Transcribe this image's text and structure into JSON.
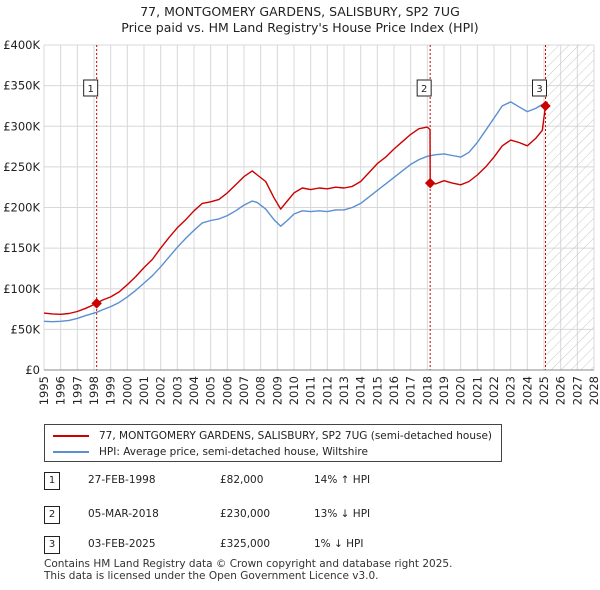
{
  "title_line1": "77, MONTGOMERY GARDENS, SALISBURY, SP2 7UG",
  "title_line2": "Price paid vs. HM Land Registry's House Price Index (HPI)",
  "legend": {
    "property_label": "77, MONTGOMERY GARDENS, SALISBURY, SP2 7UG (semi-detached house)",
    "hpi_label": "HPI: Average price, semi-detached house, Wiltshire"
  },
  "sales": [
    {
      "num": "1",
      "date": "27-FEB-1998",
      "price": "£82,000",
      "hpi": "14% ↑ HPI"
    },
    {
      "num": "2",
      "date": "05-MAR-2018",
      "price": "£230,000",
      "hpi": "13% ↓ HPI"
    },
    {
      "num": "3",
      "date": "03-FEB-2025",
      "price": "£325,000",
      "hpi": "1% ↓ HPI"
    }
  ],
  "footer": {
    "line1": "Contains HM Land Registry data © Crown copyright and database right 2025.",
    "line2": "This data is licensed under the Open Government Licence v3.0."
  },
  "colors": {
    "property": "#cc0000",
    "hpi": "#5b8fd0",
    "grid": "#d8d8d8",
    "vline": "#cc0000"
  },
  "chart_data": {
    "type": "line",
    "title": "77, MONTGOMERY GARDENS, SALISBURY, SP2 7UG — Price paid vs. HM Land Registry's House Price Index (HPI)",
    "xlabel": "",
    "ylabel": "",
    "xlim": [
      1995,
      2028
    ],
    "ylim": [
      0,
      400000
    ],
    "x_ticks": [
      1995,
      1996,
      1997,
      1998,
      1999,
      2000,
      2001,
      2002,
      2003,
      2004,
      2005,
      2006,
      2007,
      2008,
      2009,
      2010,
      2011,
      2012,
      2013,
      2014,
      2015,
      2016,
      2017,
      2018,
      2019,
      2020,
      2021,
      2022,
      2023,
      2024,
      2025,
      2026,
      2027,
      2028
    ],
    "y_ticks": [
      0,
      50000,
      100000,
      150000,
      200000,
      250000,
      300000,
      350000,
      400000
    ],
    "y_tick_labels": [
      "£0",
      "£50K",
      "£100K",
      "£150K",
      "£200K",
      "£250K",
      "£300K",
      "£350K",
      "£400K"
    ],
    "forecast_start": 2025.1,
    "sale_markers": [
      {
        "label": "1",
        "x": 1998.16,
        "y": 82000
      },
      {
        "label": "2",
        "x": 2018.17,
        "y": 230000
      },
      {
        "label": "3",
        "x": 2025.09,
        "y": 325000
      }
    ],
    "series": [
      {
        "name": "77, MONTGOMERY GARDENS, SALISBURY, SP2 7UG (semi-detached house)",
        "points": [
          [
            1995.0,
            70000
          ],
          [
            1995.5,
            69000
          ],
          [
            1996.0,
            68500
          ],
          [
            1996.5,
            69500
          ],
          [
            1997.0,
            72000
          ],
          [
            1997.5,
            76000
          ],
          [
            1998.16,
            82000
          ],
          [
            1998.5,
            86000
          ],
          [
            1999.0,
            90000
          ],
          [
            1999.5,
            96000
          ],
          [
            2000.0,
            105000
          ],
          [
            2000.5,
            115000
          ],
          [
            2001.0,
            126000
          ],
          [
            2001.5,
            136000
          ],
          [
            2002.0,
            150000
          ],
          [
            2002.5,
            163000
          ],
          [
            2003.0,
            175000
          ],
          [
            2003.5,
            185000
          ],
          [
            2004.0,
            196000
          ],
          [
            2004.5,
            205000
          ],
          [
            2005.0,
            207000
          ],
          [
            2005.5,
            210000
          ],
          [
            2006.0,
            218000
          ],
          [
            2006.5,
            228000
          ],
          [
            2007.0,
            238000
          ],
          [
            2007.5,
            245000
          ],
          [
            2007.8,
            240000
          ],
          [
            2008.3,
            232000
          ],
          [
            2008.8,
            212000
          ],
          [
            2009.2,
            198000
          ],
          [
            2009.6,
            208000
          ],
          [
            2010.0,
            218000
          ],
          [
            2010.5,
            224000
          ],
          [
            2011.0,
            222000
          ],
          [
            2011.5,
            224000
          ],
          [
            2012.0,
            223000
          ],
          [
            2012.5,
            225000
          ],
          [
            2013.0,
            224000
          ],
          [
            2013.5,
            226000
          ],
          [
            2014.0,
            232000
          ],
          [
            2014.5,
            243000
          ],
          [
            2015.0,
            254000
          ],
          [
            2015.5,
            262000
          ],
          [
            2016.0,
            272000
          ],
          [
            2016.5,
            281000
          ],
          [
            2017.0,
            290000
          ],
          [
            2017.5,
            297000
          ],
          [
            2018.0,
            299000
          ],
          [
            2018.16,
            296000
          ],
          [
            2018.17,
            230000
          ],
          [
            2018.5,
            229000
          ],
          [
            2019.0,
            233000
          ],
          [
            2019.5,
            230000
          ],
          [
            2020.0,
            228000
          ],
          [
            2020.5,
            232000
          ],
          [
            2021.0,
            240000
          ],
          [
            2021.5,
            250000
          ],
          [
            2022.0,
            262000
          ],
          [
            2022.5,
            276000
          ],
          [
            2023.0,
            283000
          ],
          [
            2023.5,
            280000
          ],
          [
            2024.0,
            276000
          ],
          [
            2024.5,
            285000
          ],
          [
            2024.9,
            295000
          ],
          [
            2025.09,
            325000
          ],
          [
            2025.2,
            330000
          ]
        ]
      },
      {
        "name": "HPI: Average price, semi-detached house, Wiltshire",
        "points": [
          [
            1995.0,
            60000
          ],
          [
            1995.5,
            59500
          ],
          [
            1996.0,
            60000
          ],
          [
            1996.5,
            61000
          ],
          [
            1997.0,
            63500
          ],
          [
            1997.5,
            67000
          ],
          [
            1998.16,
            71000
          ],
          [
            1998.5,
            74000
          ],
          [
            1999.0,
            78000
          ],
          [
            1999.5,
            83000
          ],
          [
            2000.0,
            90000
          ],
          [
            2000.5,
            98000
          ],
          [
            2001.0,
            107000
          ],
          [
            2001.5,
            116000
          ],
          [
            2002.0,
            127000
          ],
          [
            2002.5,
            139000
          ],
          [
            2003.0,
            151000
          ],
          [
            2003.5,
            162000
          ],
          [
            2004.0,
            172000
          ],
          [
            2004.5,
            181000
          ],
          [
            2005.0,
            184000
          ],
          [
            2005.5,
            186000
          ],
          [
            2006.0,
            190000
          ],
          [
            2006.5,
            196000
          ],
          [
            2007.0,
            203000
          ],
          [
            2007.5,
            208000
          ],
          [
            2007.8,
            206000
          ],
          [
            2008.3,
            198000
          ],
          [
            2008.8,
            185000
          ],
          [
            2009.2,
            177000
          ],
          [
            2009.6,
            184000
          ],
          [
            2010.0,
            192000
          ],
          [
            2010.5,
            196000
          ],
          [
            2011.0,
            195000
          ],
          [
            2011.5,
            196000
          ],
          [
            2012.0,
            195000
          ],
          [
            2012.5,
            197000
          ],
          [
            2013.0,
            197000
          ],
          [
            2013.5,
            200000
          ],
          [
            2014.0,
            205000
          ],
          [
            2014.5,
            213000
          ],
          [
            2015.0,
            221000
          ],
          [
            2015.5,
            229000
          ],
          [
            2016.0,
            237000
          ],
          [
            2016.5,
            245000
          ],
          [
            2017.0,
            253000
          ],
          [
            2017.5,
            259000
          ],
          [
            2018.0,
            263000
          ],
          [
            2018.5,
            265000
          ],
          [
            2019.0,
            266000
          ],
          [
            2019.5,
            264000
          ],
          [
            2020.0,
            262000
          ],
          [
            2020.5,
            268000
          ],
          [
            2021.0,
            280000
          ],
          [
            2021.5,
            295000
          ],
          [
            2022.0,
            310000
          ],
          [
            2022.5,
            325000
          ],
          [
            2023.0,
            330000
          ],
          [
            2023.5,
            324000
          ],
          [
            2024.0,
            318000
          ],
          [
            2024.5,
            322000
          ],
          [
            2025.0,
            328000
          ],
          [
            2025.2,
            330000
          ]
        ]
      }
    ]
  }
}
